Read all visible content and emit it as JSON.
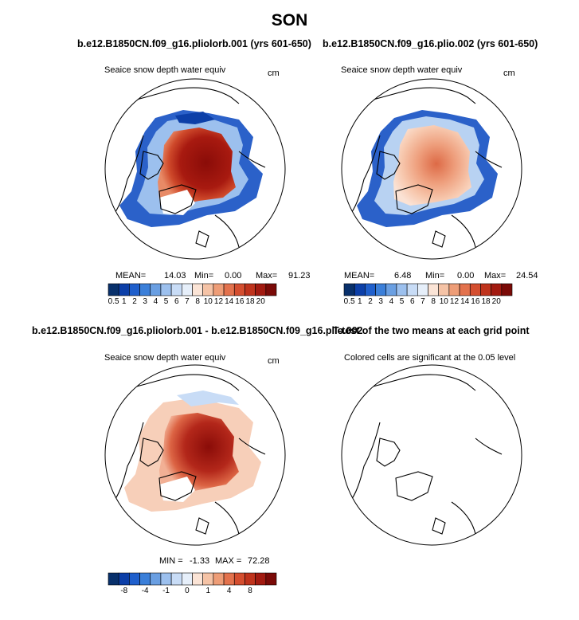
{
  "title": "SON",
  "colors": {
    "blue_scale": [
      "#08306b",
      "#0c3fa8",
      "#1f5fcc",
      "#3b7fd9",
      "#6a9fe2",
      "#9cc0ee",
      "#c8dcf6",
      "#e6effa"
    ],
    "red_scale": [
      "#fbe4d6",
      "#f5c3a6",
      "#ee9d77",
      "#e3724d",
      "#d44e2f",
      "#bf331c",
      "#a21a10",
      "#7a0a07"
    ],
    "land_line": "#000000"
  },
  "panels": [
    {
      "id": "panel-1",
      "header": "b.e12.B1850CN.f09_g16.pliolorb.001 (yrs 601-650)",
      "left_label": "Seaice snow depth water equiv",
      "right_label": "cm",
      "stats": {
        "mean_label": "MEAN=",
        "mean": "14.03",
        "min_label": "Min=",
        "min": "0.00",
        "max_label": "Max=",
        "max": "91.23"
      },
      "colorbar_ticks": [
        "0.5",
        "1",
        "2",
        "3",
        "4",
        "5",
        "6",
        "7",
        "8",
        "10",
        "12",
        "14",
        "16",
        "18",
        "20"
      ]
    },
    {
      "id": "panel-2",
      "header": "b.e12.B1850CN.f09_g16.plio.002 (yrs 601-650)",
      "left_label": "Seaice snow depth water equiv",
      "right_label": "cm",
      "stats": {
        "mean_label": "MEAN=",
        "mean": "6.48",
        "min_label": "Min=",
        "min": "0.00",
        "max_label": "Max=",
        "max": "24.54"
      },
      "colorbar_ticks": [
        "0.5",
        "1",
        "2",
        "3",
        "4",
        "5",
        "6",
        "7",
        "8",
        "10",
        "12",
        "14",
        "16",
        "18",
        "20"
      ]
    },
    {
      "id": "panel-3",
      "header": "b.e12.B1850CN.f09_g16.pliolorb.001 - b.e12.B1850CN.f09_g16.plio.002",
      "left_label": "Seaice snow depth water equiv",
      "right_label": "cm",
      "stats": {
        "min_label": "MIN =",
        "min": "-1.33",
        "max_label": "MAX =",
        "max": "72.28"
      },
      "colorbar_ticks": [
        "-8",
        "-4",
        "-1",
        "0",
        "1",
        "4",
        "8"
      ]
    },
    {
      "id": "panel-4",
      "header": "T-test of the two means at each grid point",
      "left_label": "Colored cells are significant at the 0.05 level"
    }
  ],
  "chart_data": [
    {
      "type": "heatmap",
      "projection": "north polar stereographic",
      "title": "b.e12.B1850CN.f09_g16.pliolorb.001 (yrs 601-650)",
      "variable": "Seaice snow depth water equiv",
      "units": "cm",
      "levels": [
        0.5,
        1,
        2,
        3,
        4,
        5,
        6,
        7,
        8,
        10,
        12,
        14,
        16,
        18,
        20
      ],
      "mean": 14.03,
      "min": 0.0,
      "max": 91.23
    },
    {
      "type": "heatmap",
      "projection": "north polar stereographic",
      "title": "b.e12.B1850CN.f09_g16.plio.002 (yrs 601-650)",
      "variable": "Seaice snow depth water equiv",
      "units": "cm",
      "levels": [
        0.5,
        1,
        2,
        3,
        4,
        5,
        6,
        7,
        8,
        10,
        12,
        14,
        16,
        18,
        20
      ],
      "mean": 6.48,
      "min": 0.0,
      "max": 24.54
    },
    {
      "type": "heatmap",
      "projection": "north polar stereographic",
      "title": "b.e12.B1850CN.f09_g16.pliolorb.001 - b.e12.B1850CN.f09_g16.plio.002",
      "variable": "Seaice snow depth water equiv",
      "units": "cm",
      "levels": [
        -8,
        -4,
        -1,
        0,
        1,
        4,
        8
      ],
      "min": -1.33,
      "max": 72.28
    },
    {
      "type": "heatmap",
      "projection": "north polar stereographic",
      "title": "T-test of the two means at each grid point",
      "note": "Colored cells are significant at the 0.05 level"
    }
  ]
}
